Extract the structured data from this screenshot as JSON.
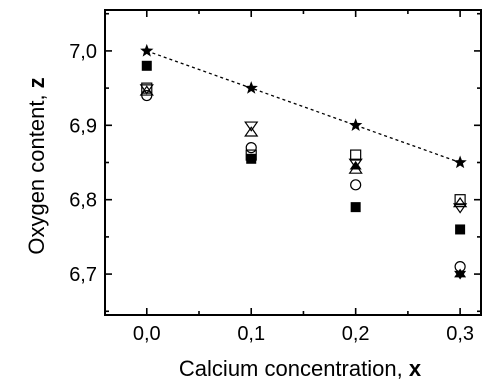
{
  "chart_data": {
    "type": "scatter",
    "title": "",
    "xlabel": "Calcium concentration, ",
    "xlabel_var": "x",
    "ylabel": "Oxygen content, ",
    "ylabel_var": "z",
    "xlim": [
      -0.04,
      0.32
    ],
    "ylim": [
      6.645,
      7.055
    ],
    "xticks": [
      0.0,
      0.1,
      0.2,
      0.3
    ],
    "xtick_labels": [
      "0,0",
      "0,1",
      "0,2",
      "0,3"
    ],
    "yticks": [
      6.7,
      6.8,
      6.9,
      7.0
    ],
    "ytick_labels": [
      "6,7",
      "6,8",
      "6,9",
      "7,0"
    ],
    "grid": false,
    "series": [
      {
        "marker": "star",
        "values": [
          {
            "x": 0.0,
            "y": 7.0
          },
          {
            "x": 0.1,
            "y": 6.95
          },
          {
            "x": 0.2,
            "y": 6.9
          },
          {
            "x": 0.3,
            "y": 6.85
          }
        ]
      },
      {
        "marker": "filled-square",
        "values": [
          {
            "x": 0.0,
            "y": 6.98
          },
          {
            "x": 0.1,
            "y": 6.855
          },
          {
            "x": 0.2,
            "y": 6.79
          },
          {
            "x": 0.3,
            "y": 6.76
          }
        ]
      },
      {
        "marker": "open-square",
        "values": [
          {
            "x": 0.0,
            "y": 6.95
          },
          {
            "x": 0.1,
            "y": 6.86
          },
          {
            "x": 0.2,
            "y": 6.86
          },
          {
            "x": 0.3,
            "y": 6.8
          }
        ]
      },
      {
        "marker": "open-circle",
        "values": [
          {
            "x": 0.0,
            "y": 6.94
          },
          {
            "x": 0.1,
            "y": 6.87
          },
          {
            "x": 0.2,
            "y": 6.82
          },
          {
            "x": 0.3,
            "y": 6.71
          }
        ]
      },
      {
        "marker": "open-triangle-up",
        "values": [
          {
            "x": 0.0,
            "y": 6.945
          },
          {
            "x": 0.1,
            "y": 6.89
          },
          {
            "x": 0.2,
            "y": 6.84
          },
          {
            "x": 0.3,
            "y": 6.795
          }
        ]
      },
      {
        "marker": "open-triangle-down",
        "values": [
          {
            "x": 0.0,
            "y": 6.95
          },
          {
            "x": 0.1,
            "y": 6.9
          },
          {
            "x": 0.2,
            "y": 6.85
          },
          {
            "x": 0.3,
            "y": 6.79
          }
        ]
      },
      {
        "marker": "filled-triangle-up",
        "values": [
          {
            "x": 0.2,
            "y": 6.845
          },
          {
            "x": 0.3,
            "y": 6.7
          }
        ]
      },
      {
        "marker": "filled-triangle-down",
        "values": [
          {
            "x": 0.3,
            "y": 6.7
          }
        ]
      }
    ],
    "fit_line": {
      "style": "dashed",
      "from": {
        "x": 0.0,
        "y": 7.0
      },
      "to": {
        "x": 0.3,
        "y": 6.85
      }
    }
  }
}
